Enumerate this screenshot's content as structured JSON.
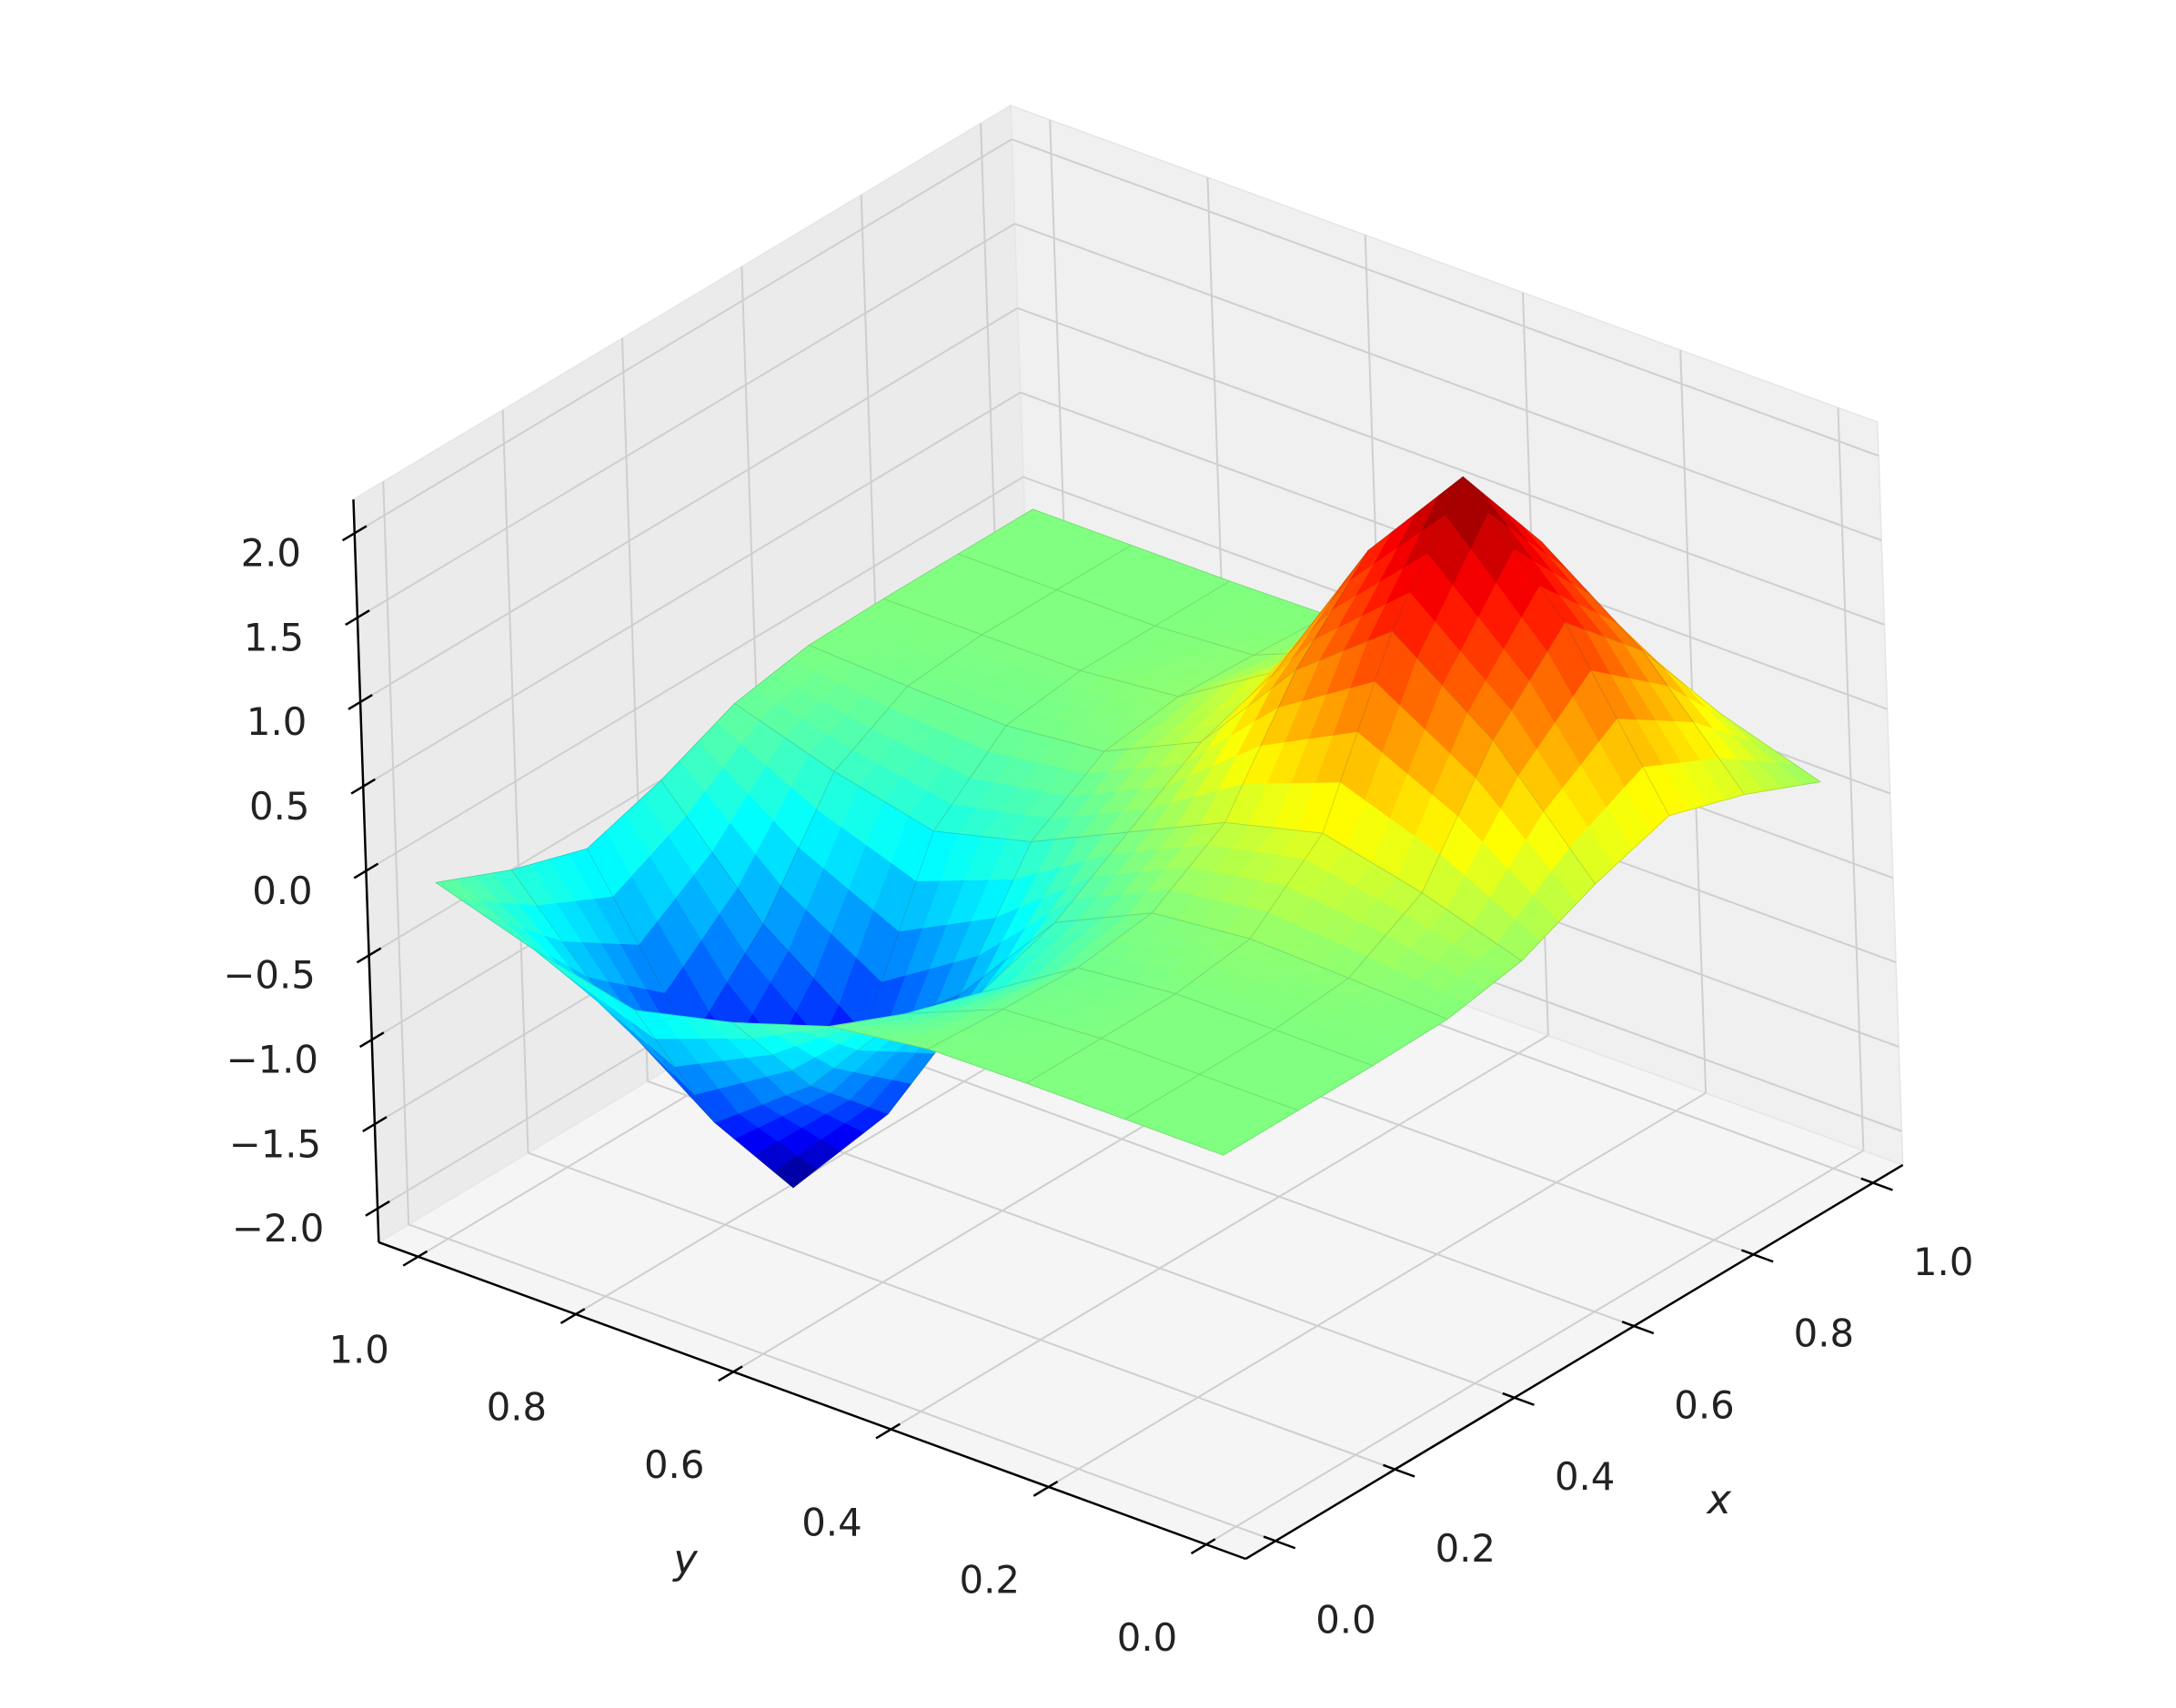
{
  "chart_data": {
    "type": "surface",
    "colormap": "jet",
    "grid": true,
    "xlabel": "x",
    "ylabel": "y",
    "x": [
      0,
      0.125,
      0.25,
      0.375,
      0.5,
      0.625,
      0.75,
      0.875,
      1
    ],
    "y": [
      0,
      0.125,
      0.25,
      0.375,
      0.5,
      0.625,
      0.75,
      0.875,
      1
    ],
    "z": [
      [
        0,
        0,
        0,
        0.01,
        0.09,
        0.28,
        0.42,
        0.28,
        0.09
      ],
      [
        0,
        0,
        0,
        0.04,
        0.28,
        0.92,
        1.35,
        0.92,
        0.28
      ],
      [
        0,
        0,
        0,
        0.06,
        0.42,
        1.35,
        2,
        1.35,
        0.42
      ],
      [
        -0.01,
        -0.04,
        -0.06,
        0,
        0.27,
        0.91,
        1.35,
        0.92,
        0.28
      ],
      [
        -0.09,
        -0.28,
        -0.42,
        -0.27,
        0,
        0.27,
        0.42,
        0.28,
        0.09
      ],
      [
        -0.28,
        -0.92,
        -1.35,
        -0.91,
        -0.27,
        0,
        0.06,
        0.04,
        0.01
      ],
      [
        -0.42,
        -1.35,
        -2,
        -1.35,
        -0.42,
        -0.06,
        0,
        0,
        0
      ],
      [
        -0.28,
        -0.92,
        -1.35,
        -0.92,
        -0.28,
        -0.04,
        0,
        0,
        0
      ],
      [
        -0.09,
        -0.28,
        -0.42,
        -0.28,
        -0.09,
        -0.01,
        0,
        0,
        0
      ]
    ],
    "xlim": [
      -0.05,
      1.05
    ],
    "ylim": [
      -0.05,
      1.05
    ],
    "zlim": [
      -2.2,
      2.2
    ],
    "xticks": [
      {
        "value": 0,
        "label": "0.0"
      },
      {
        "value": 0.2,
        "label": "0.2"
      },
      {
        "value": 0.4,
        "label": "0.4"
      },
      {
        "value": 0.6,
        "label": "0.6"
      },
      {
        "value": 0.8,
        "label": "0.8"
      },
      {
        "value": 1,
        "label": "1.0"
      }
    ],
    "yticks": [
      {
        "value": 0,
        "label": "0.0"
      },
      {
        "value": 0.2,
        "label": "0.2"
      },
      {
        "value": 0.4,
        "label": "0.4"
      },
      {
        "value": 0.6,
        "label": "0.6"
      },
      {
        "value": 0.8,
        "label": "0.8"
      },
      {
        "value": 1,
        "label": "1.0"
      }
    ],
    "zticks": [
      {
        "value": -2,
        "label": "−2.0"
      },
      {
        "value": -1.5,
        "label": "−1.5"
      },
      {
        "value": -1,
        "label": "−1.0"
      },
      {
        "value": -0.5,
        "label": "−0.5"
      },
      {
        "value": 0,
        "label": "0.0"
      },
      {
        "value": 0.5,
        "label": "0.5"
      },
      {
        "value": 1,
        "label": "1.0"
      },
      {
        "value": 1.5,
        "label": "1.5"
      },
      {
        "value": 2,
        "label": "2.0"
      }
    ]
  }
}
